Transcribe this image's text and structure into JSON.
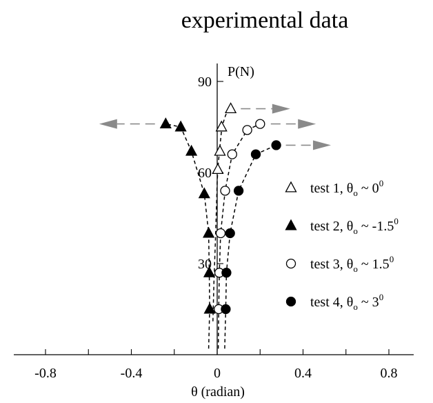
{
  "chart_data": {
    "type": "scatter",
    "title": "experimental data",
    "xlabel": "θ (radian)",
    "ylabel": "P(N)",
    "xlim": [
      -0.9,
      0.9
    ],
    "ylim": [
      0,
      97
    ],
    "x_ticks": [
      -0.8,
      -0.6,
      -0.4,
      -0.2,
      0,
      0.2,
      0.4,
      0.6,
      0.8
    ],
    "x_tick_labels": [
      {
        "value": -0.8,
        "text": "-0.8"
      },
      {
        "value": -0.4,
        "text": "-0.4"
      },
      {
        "value": 0,
        "text": "0"
      },
      {
        "value": 0.4,
        "text": "0.4"
      },
      {
        "value": 0.8,
        "text": "0.8"
      }
    ],
    "y_ticks": [
      30,
      60,
      90
    ],
    "y_tick_labels": [
      {
        "value": 30,
        "text": "30"
      },
      {
        "value": 60,
        "text": "60"
      },
      {
        "value": 90,
        "text": "90"
      }
    ],
    "grid": false,
    "legend_position": "right",
    "series": [
      {
        "name": "test 1, θo ~ 0⁰",
        "label": {
          "main": "test 1, θ",
          "sub": "o",
          "rest": " ~ 0",
          "sup": "0"
        },
        "marker": "triangle-open",
        "curve_color": "#000000",
        "points": [
          [
            0.003,
            61
          ],
          [
            0.013,
            67
          ],
          [
            0.02,
            75
          ],
          [
            0.063,
            81
          ]
        ],
        "curve": [
          [
            -0.02,
            11
          ],
          [
            -0.015,
            24
          ],
          [
            -0.008,
            38
          ],
          [
            -0.003,
            50
          ],
          [
            0.0,
            57
          ],
          [
            0.004,
            62
          ],
          [
            0.012,
            68
          ],
          [
            0.022,
            75
          ],
          [
            0.04,
            79
          ],
          [
            0.063,
            81
          ]
        ],
        "arrow": [
          [
            0.11,
            81
          ],
          [
            0.34,
            81
          ]
        ]
      },
      {
        "name": "test 2, θo ~ -1.5⁰",
        "label": {
          "main": "test 2, θ",
          "sub": "o",
          "rest": " ~ -1.5",
          "sup": "0"
        },
        "marker": "triangle-filled",
        "curve_color": "#000000",
        "points": [
          [
            -0.035,
            15
          ],
          [
            -0.037,
            27
          ],
          [
            -0.04,
            40
          ],
          [
            -0.06,
            53
          ],
          [
            -0.12,
            67
          ],
          [
            -0.17,
            75
          ],
          [
            -0.24,
            76
          ]
        ],
        "curve": [
          [
            -0.04,
            2
          ],
          [
            -0.035,
            15
          ],
          [
            -0.037,
            27
          ],
          [
            -0.04,
            40
          ],
          [
            -0.06,
            53
          ],
          [
            -0.12,
            67
          ],
          [
            -0.17,
            75
          ],
          [
            -0.24,
            76
          ]
        ],
        "arrow": [
          [
            -0.29,
            76
          ],
          [
            -0.55,
            76
          ]
        ]
      },
      {
        "name": "test 3, θo ~ 1.5⁰",
        "label": {
          "main": "test 3, θ",
          "sub": "o",
          "rest": " ~ 1.5",
          "sup": "0"
        },
        "marker": "circle-open",
        "curve_color": "#000000",
        "points": [
          [
            0.007,
            15
          ],
          [
            0.01,
            27
          ],
          [
            0.016,
            40
          ],
          [
            0.037,
            54
          ],
          [
            0.07,
            66
          ],
          [
            0.14,
            74
          ],
          [
            0.2,
            76
          ]
        ],
        "curve": [
          [
            0.005,
            2
          ],
          [
            0.007,
            15
          ],
          [
            0.01,
            27
          ],
          [
            0.016,
            40
          ],
          [
            0.037,
            54
          ],
          [
            0.07,
            66
          ],
          [
            0.14,
            74
          ],
          [
            0.2,
            76
          ]
        ],
        "arrow": [
          [
            0.25,
            76
          ],
          [
            0.46,
            76
          ]
        ]
      },
      {
        "name": "test 4, θo ~ 3⁰",
        "label": {
          "main": "test 4, θ",
          "sub": "o",
          "rest": " ~ 3",
          "sup": "0"
        },
        "marker": "circle-filled",
        "curve_color": "#000000",
        "points": [
          [
            0.04,
            15
          ],
          [
            0.043,
            27
          ],
          [
            0.06,
            40
          ],
          [
            0.1,
            54
          ],
          [
            0.18,
            66
          ],
          [
            0.275,
            69
          ]
        ],
        "curve": [
          [
            0.035,
            2
          ],
          [
            0.04,
            15
          ],
          [
            0.043,
            27
          ],
          [
            0.06,
            40
          ],
          [
            0.1,
            54
          ],
          [
            0.18,
            66
          ],
          [
            0.275,
            69
          ]
        ],
        "arrow": [
          [
            0.32,
            69
          ],
          [
            0.53,
            69
          ]
        ]
      }
    ],
    "colors": {
      "axis": "#000000",
      "arrow": "#8a8a8a",
      "marker": "#000000"
    }
  }
}
